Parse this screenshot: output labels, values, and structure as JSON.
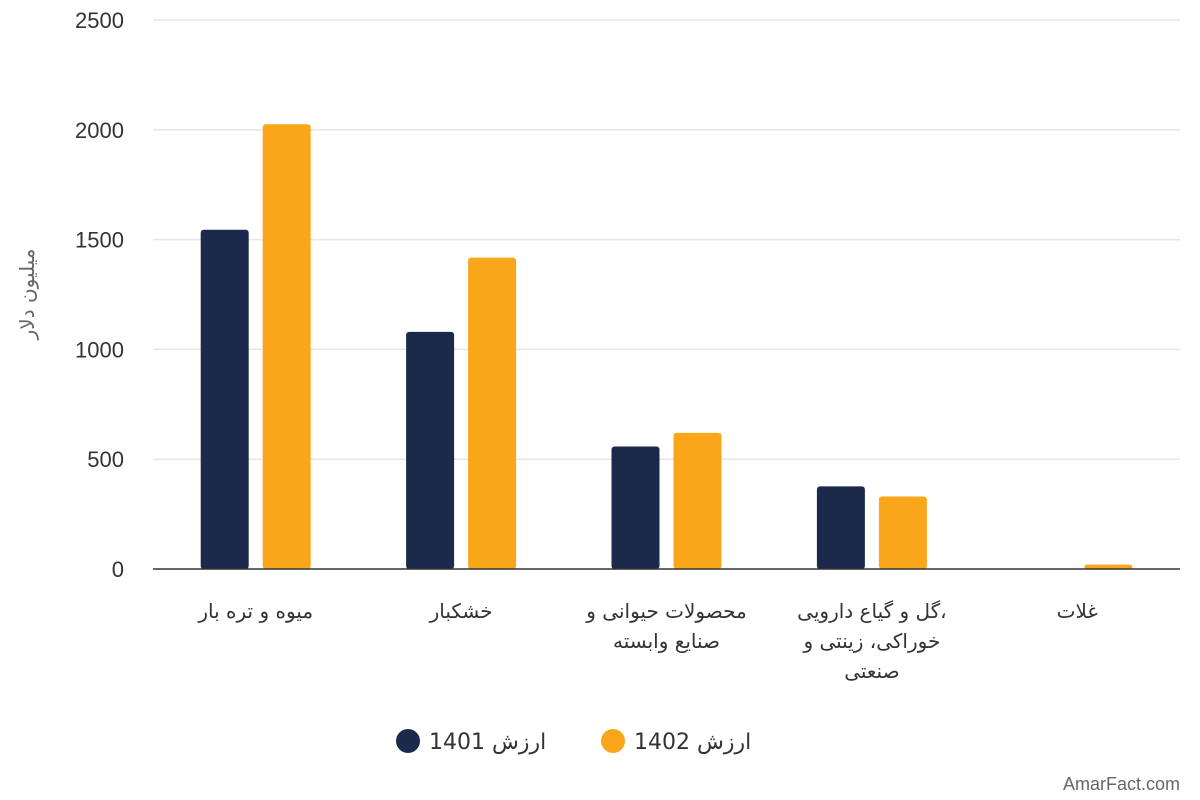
{
  "chart_data": {
    "type": "bar",
    "categories": [
      [
        "میوه و تره بار"
      ],
      [
        "خشکبار"
      ],
      [
        "محصولات حیوانی و",
        "صنایع وابسته"
      ],
      [
        "،گل و گیاع دارویی",
        "خوراکی، زینتی و",
        "صنعتی"
      ],
      [
        "غلات"
      ]
    ],
    "series": [
      {
        "name": "ارزش 1401",
        "color": "#1b2a4a",
        "values": [
          1545,
          1080,
          558,
          376,
          0
        ]
      },
      {
        "name": "ارزش 1402",
        "color": "#faa61a",
        "values": [
          2025,
          1418,
          620,
          330,
          20
        ]
      }
    ],
    "ylabel": "میلیون دلار",
    "ylim": [
      0,
      2500
    ],
    "yticks": [
      0,
      500,
      1000,
      1500,
      2000,
      2500
    ],
    "grid": true,
    "legend_position": "bottom-center"
  },
  "watermark": "AmarFact.com"
}
